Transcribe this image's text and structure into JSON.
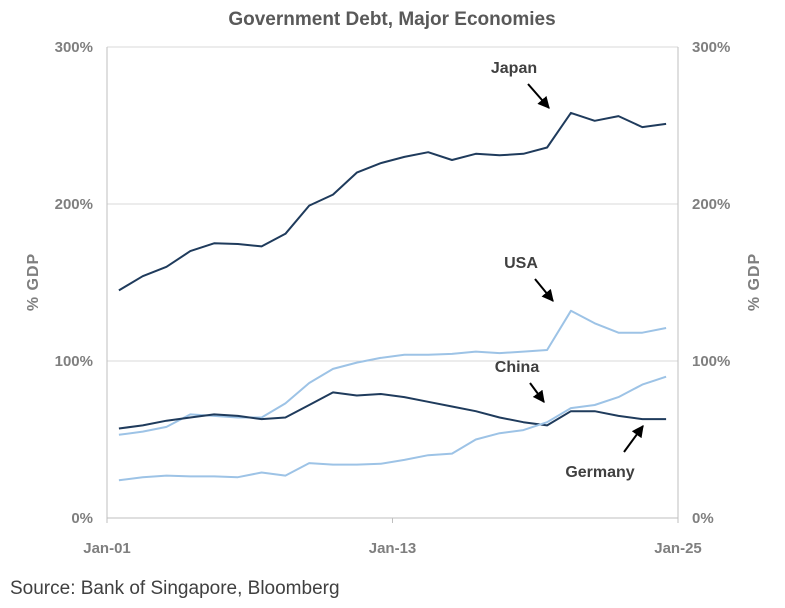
{
  "chart_data": {
    "type": "line",
    "title": "Government Debt, Major Economies",
    "ylabel_left": "% GDP",
    "ylabel_right": "% GDP",
    "ylim": [
      0,
      300
    ],
    "xlim": [
      2001,
      2025
    ],
    "yticks": [
      {
        "value": 0,
        "label": "0%"
      },
      {
        "value": 100,
        "label": "100%"
      },
      {
        "value": 200,
        "label": "200%"
      },
      {
        "value": 300,
        "label": "300%"
      }
    ],
    "xticks": [
      {
        "value": 2001,
        "label": "Jan-01"
      },
      {
        "value": 2013,
        "label": "Jan-13"
      },
      {
        "value": 2025,
        "label": "Jan-25"
      }
    ],
    "series": [
      {
        "name": "Japan",
        "color": "#1f3b5c",
        "x": [
          2001,
          2002,
          2003,
          2004,
          2005,
          2006,
          2007,
          2008,
          2009,
          2010,
          2011,
          2012,
          2013,
          2014,
          2015,
          2016,
          2017,
          2018,
          2019,
          2020,
          2021,
          2022,
          2023,
          2024
        ],
        "values": [
          145,
          154,
          160,
          170,
          175,
          174.5,
          173,
          181,
          199,
          206,
          220,
          226,
          230,
          233,
          228,
          232,
          231,
          232,
          236,
          258,
          253,
          256,
          249,
          251
        ]
      },
      {
        "name": "USA",
        "color": "#9dc3e6",
        "x": [
          2001,
          2002,
          2003,
          2004,
          2005,
          2006,
          2007,
          2008,
          2009,
          2010,
          2011,
          2012,
          2013,
          2014,
          2015,
          2016,
          2017,
          2018,
          2019,
          2020,
          2021,
          2022,
          2023,
          2024
        ],
        "values": [
          53,
          55,
          58,
          66,
          65,
          64,
          64,
          73,
          86,
          95,
          99,
          102,
          104,
          104,
          104.5,
          106,
          105,
          106,
          107,
          132,
          124,
          118,
          118,
          121
        ]
      },
      {
        "name": "Germany",
        "color": "#1f3b5c",
        "x": [
          2001,
          2002,
          2003,
          2004,
          2005,
          2006,
          2007,
          2008,
          2009,
          2010,
          2011,
          2012,
          2013,
          2014,
          2015,
          2016,
          2017,
          2018,
          2019,
          2020,
          2021,
          2022,
          2023,
          2024
        ],
        "values": [
          57,
          59,
          62,
          64,
          66,
          65,
          63,
          64,
          72,
          80,
          78,
          79,
          77,
          74,
          71,
          68,
          64,
          61,
          59,
          68,
          68,
          65,
          63,
          63
        ]
      },
      {
        "name": "China",
        "color": "#9dc3e6",
        "x": [
          2001,
          2002,
          2003,
          2004,
          2005,
          2006,
          2007,
          2008,
          2009,
          2010,
          2011,
          2012,
          2013,
          2014,
          2015,
          2016,
          2017,
          2018,
          2019,
          2020,
          2021,
          2022,
          2023,
          2024
        ],
        "values": [
          24,
          26,
          27,
          26.5,
          26.5,
          26,
          29,
          27,
          35,
          34,
          34,
          34.5,
          37,
          40,
          41,
          50,
          54,
          56,
          61,
          70,
          72,
          77,
          85,
          90
        ]
      }
    ],
    "annotations": [
      {
        "text": "Japan",
        "series": "Japan"
      },
      {
        "text": "USA",
        "series": "USA"
      },
      {
        "text": "China",
        "series": "China"
      },
      {
        "text": "Germany",
        "series": "Germany"
      }
    ]
  },
  "source": "Source: Bank of Singapore, Bloomberg"
}
